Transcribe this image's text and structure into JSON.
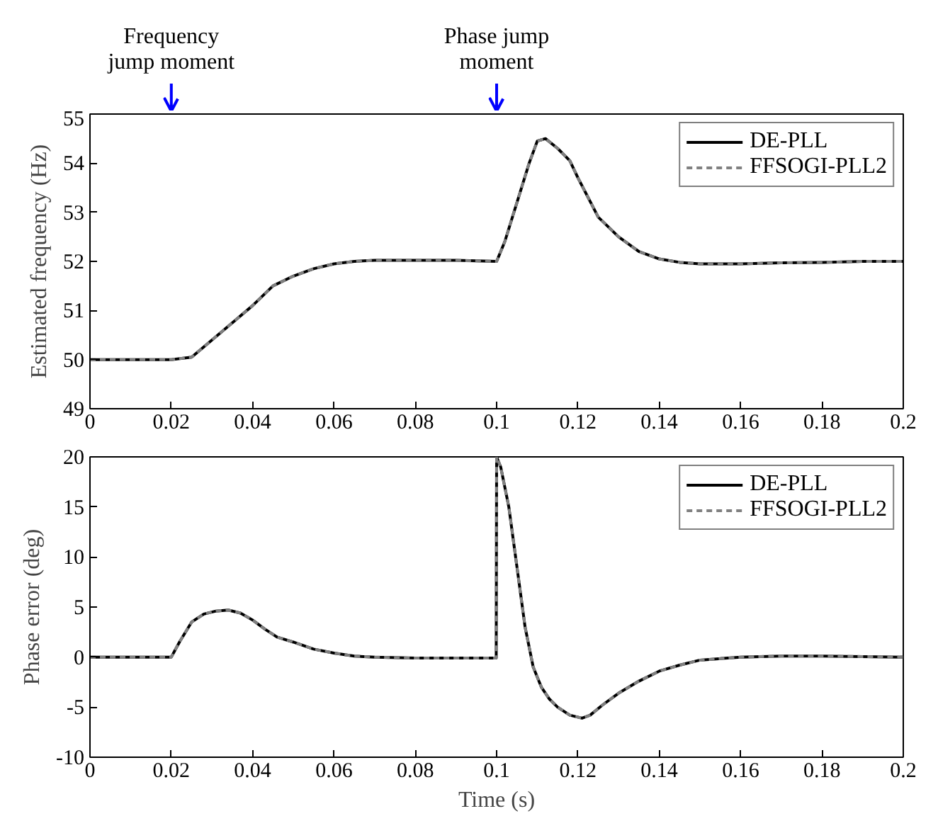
{
  "chart_data": [
    {
      "type": "line",
      "ylabel": "Estimated frequency (Hz)",
      "ref_lines": [
        {
          "axis": "x",
          "value": 0.02,
          "label": "Frequency jump moment",
          "color": "#0000ff"
        },
        {
          "axis": "x",
          "value": 0.1,
          "label": "Phase jump moment",
          "color": "#0000ff"
        }
      ],
      "x": [
        0,
        0.02,
        0.025,
        0.03,
        0.035,
        0.04,
        0.045,
        0.05,
        0.055,
        0.06,
        0.065,
        0.07,
        0.08,
        0.09,
        0.1,
        0.102,
        0.105,
        0.108,
        0.11,
        0.112,
        0.115,
        0.118,
        0.12,
        0.125,
        0.13,
        0.135,
        0.14,
        0.145,
        0.15,
        0.16,
        0.17,
        0.18,
        0.19,
        0.2
      ],
      "series": [
        {
          "name": "DE-PLL",
          "color": "#000000",
          "line_style": "solid",
          "values": [
            50,
            50,
            50.05,
            50.4,
            50.75,
            51.1,
            51.5,
            51.7,
            51.85,
            51.95,
            52.0,
            52.02,
            52.02,
            52.02,
            52.0,
            52.4,
            53.2,
            54.0,
            54.45,
            54.5,
            54.3,
            54.05,
            53.7,
            52.9,
            52.5,
            52.2,
            52.05,
            51.98,
            51.95,
            51.95,
            51.97,
            51.98,
            52.0,
            52.0
          ]
        },
        {
          "name": "FFSOGI-PLL2",
          "color": "#808080",
          "line_style": "dashed",
          "values": [
            50,
            50,
            50.05,
            50.4,
            50.75,
            51.1,
            51.5,
            51.7,
            51.85,
            51.95,
            52.0,
            52.02,
            52.02,
            52.02,
            52.0,
            52.4,
            53.2,
            54.0,
            54.45,
            54.5,
            54.3,
            54.05,
            53.7,
            52.9,
            52.5,
            52.2,
            52.05,
            51.98,
            51.95,
            51.95,
            51.97,
            51.98,
            52.0,
            52.0
          ]
        }
      ],
      "xlim": [
        0,
        0.2
      ],
      "xticks": [
        0,
        0.02,
        0.04,
        0.06,
        0.08,
        0.1,
        0.12,
        0.14,
        0.16,
        0.18,
        0.2
      ],
      "ylim": [
        49,
        55
      ],
      "yticks": [
        49,
        50,
        51,
        52,
        53,
        54,
        55
      ],
      "grid": false,
      "legend": "top right",
      "marker": "none"
    },
    {
      "type": "line",
      "xlabel": "Time (s)",
      "ylabel": "Phase error (deg)",
      "x": [
        0,
        0.02,
        0.022,
        0.025,
        0.028,
        0.031,
        0.034,
        0.037,
        0.04,
        0.043,
        0.046,
        0.05,
        0.055,
        0.06,
        0.065,
        0.07,
        0.08,
        0.09,
        0.0999,
        0.1,
        0.101,
        0.103,
        0.105,
        0.107,
        0.109,
        0.111,
        0.113,
        0.115,
        0.118,
        0.121,
        0.123,
        0.126,
        0.13,
        0.135,
        0.14,
        0.145,
        0.15,
        0.16,
        0.17,
        0.18,
        0.2
      ],
      "series": [
        {
          "name": "DE-PLL",
          "color": "#000000",
          "line_style": "solid",
          "values": [
            0,
            0,
            1.5,
            3.5,
            4.3,
            4.6,
            4.7,
            4.4,
            3.7,
            2.8,
            2.0,
            1.5,
            0.8,
            0.4,
            0.1,
            0,
            -0.1,
            -0.1,
            -0.1,
            20,
            19,
            15,
            9,
            3,
            -1,
            -3,
            -4.2,
            -5,
            -5.8,
            -6.1,
            -5.8,
            -4.8,
            -3.6,
            -2.4,
            -1.4,
            -0.8,
            -0.3,
            0,
            0.1,
            0.1,
            0
          ]
        },
        {
          "name": "FFSOGI-PLL2",
          "color": "#808080",
          "line_style": "dashed",
          "values": [
            0,
            0,
            1.5,
            3.5,
            4.3,
            4.6,
            4.7,
            4.4,
            3.7,
            2.8,
            2.0,
            1.5,
            0.8,
            0.4,
            0.1,
            0,
            -0.1,
            -0.1,
            -0.1,
            20,
            19,
            15,
            9,
            3,
            -1,
            -3,
            -4.2,
            -5,
            -5.8,
            -6.1,
            -5.8,
            -4.8,
            -3.6,
            -2.4,
            -1.4,
            -0.8,
            -0.3,
            0,
            0.1,
            0.1,
            0
          ]
        }
      ],
      "xlim": [
        0,
        0.2
      ],
      "xticks": [
        0,
        0.02,
        0.04,
        0.06,
        0.08,
        0.1,
        0.12,
        0.14,
        0.16,
        0.18,
        0.2
      ],
      "ylim": [
        -10,
        20
      ],
      "yticks": [
        -10,
        -5,
        0,
        5,
        10,
        15,
        20
      ],
      "grid": false,
      "legend": "top right",
      "marker": "none"
    }
  ]
}
